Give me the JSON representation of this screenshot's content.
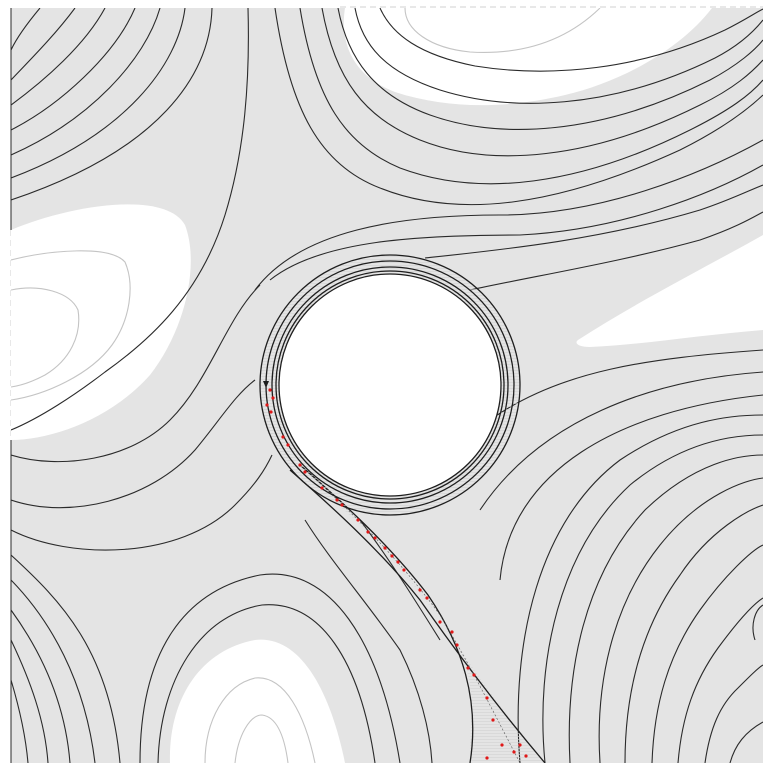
{
  "map": {
    "colors": {
      "terrain_fill": "#e4e4e4",
      "basin_fill": "#ffffff",
      "contour_line": "#2a2a2a",
      "light_contour": "#c4c4c4",
      "track_line": "#1e1e1e",
      "sample_points": "#e01818",
      "frame_dash": "#d0d0d0"
    },
    "features": [
      "contour-lines",
      "white-basins",
      "circular-loop-track",
      "descending-channel",
      "red-sample-points",
      "dashed-frame"
    ]
  }
}
